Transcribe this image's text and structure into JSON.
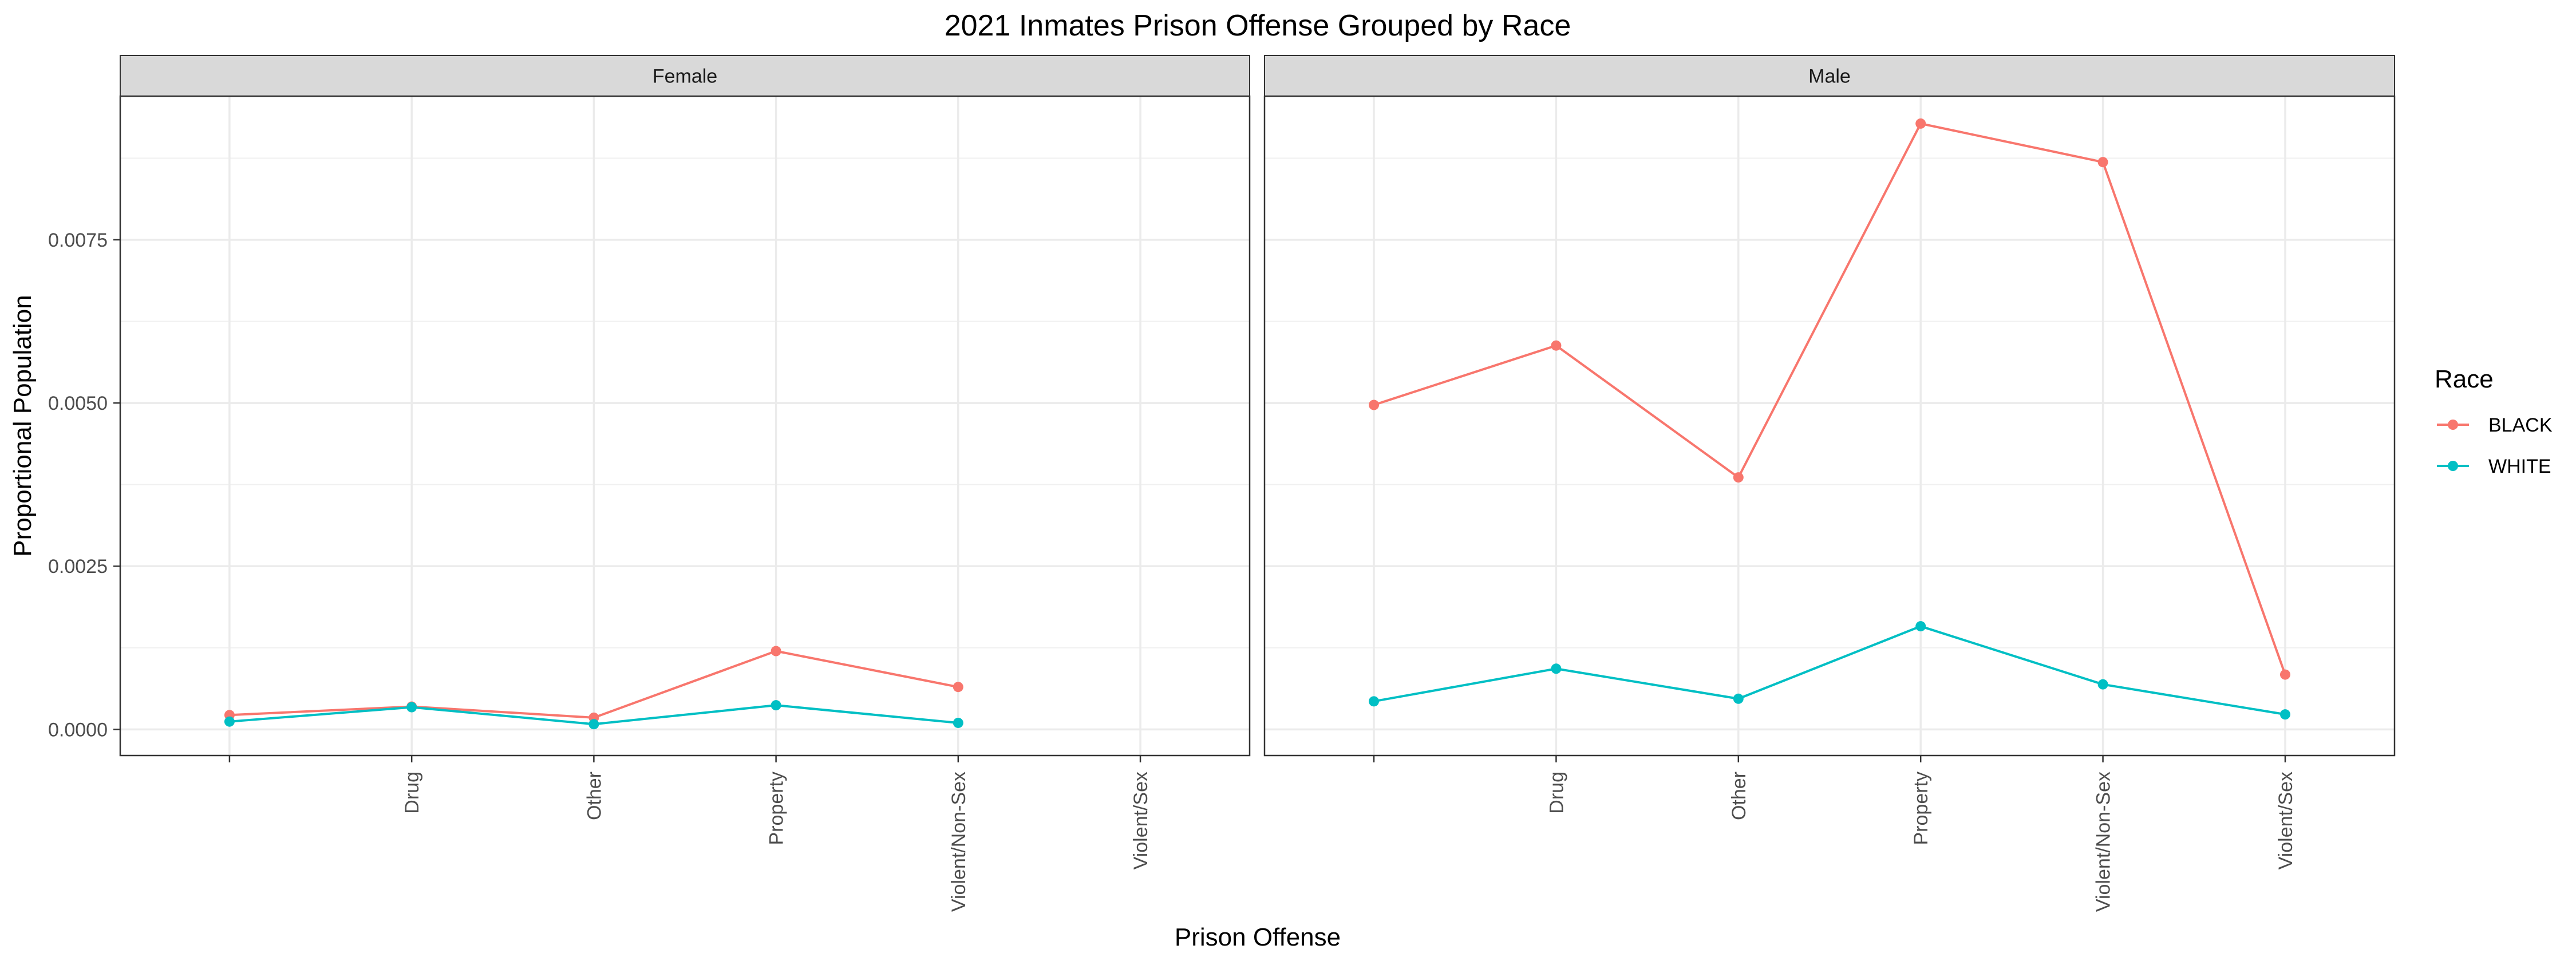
{
  "chart_data": {
    "type": "line",
    "title": "2021 Inmates Prison Offense Grouped by Race",
    "xlabel": "Prison Offense",
    "ylabel": "Proportional Population",
    "categories": [
      "",
      "Drug",
      "Other",
      "Property",
      "Violent/Non-Sex",
      "Violent/Sex"
    ],
    "ylim": [
      -0.0004,
      0.0097
    ],
    "yticks": [
      0,
      0.0025,
      0.005,
      0.0075
    ],
    "ytick_labels": [
      "0.0000",
      "0.0025",
      "0.0050",
      "0.0075"
    ],
    "grid": true,
    "legend": {
      "title": "Race",
      "position": "right",
      "entries": [
        {
          "name": "BLACK",
          "color": "#F8766D"
        },
        {
          "name": "WHITE",
          "color": "#00BFC4"
        }
      ]
    },
    "panels": [
      {
        "label": "Female",
        "series": [
          {
            "name": "BLACK",
            "color": "#F8766D",
            "values": [
              0.00022,
              0.00035,
              0.00018,
              0.0012,
              0.00065,
              null
            ]
          },
          {
            "name": "WHITE",
            "color": "#00BFC4",
            "values": [
              0.00012,
              0.00034,
              8e-05,
              0.00037,
              0.0001,
              null
            ]
          }
        ]
      },
      {
        "label": "Male",
        "series": [
          {
            "name": "BLACK",
            "color": "#F8766D",
            "values": [
              0.00497,
              0.00588,
              0.00386,
              0.00928,
              0.00869,
              0.00084
            ]
          },
          {
            "name": "WHITE",
            "color": "#00BFC4",
            "values": [
              0.00043,
              0.00093,
              0.00047,
              0.00158,
              0.00069,
              0.00023
            ]
          }
        ]
      }
    ]
  }
}
